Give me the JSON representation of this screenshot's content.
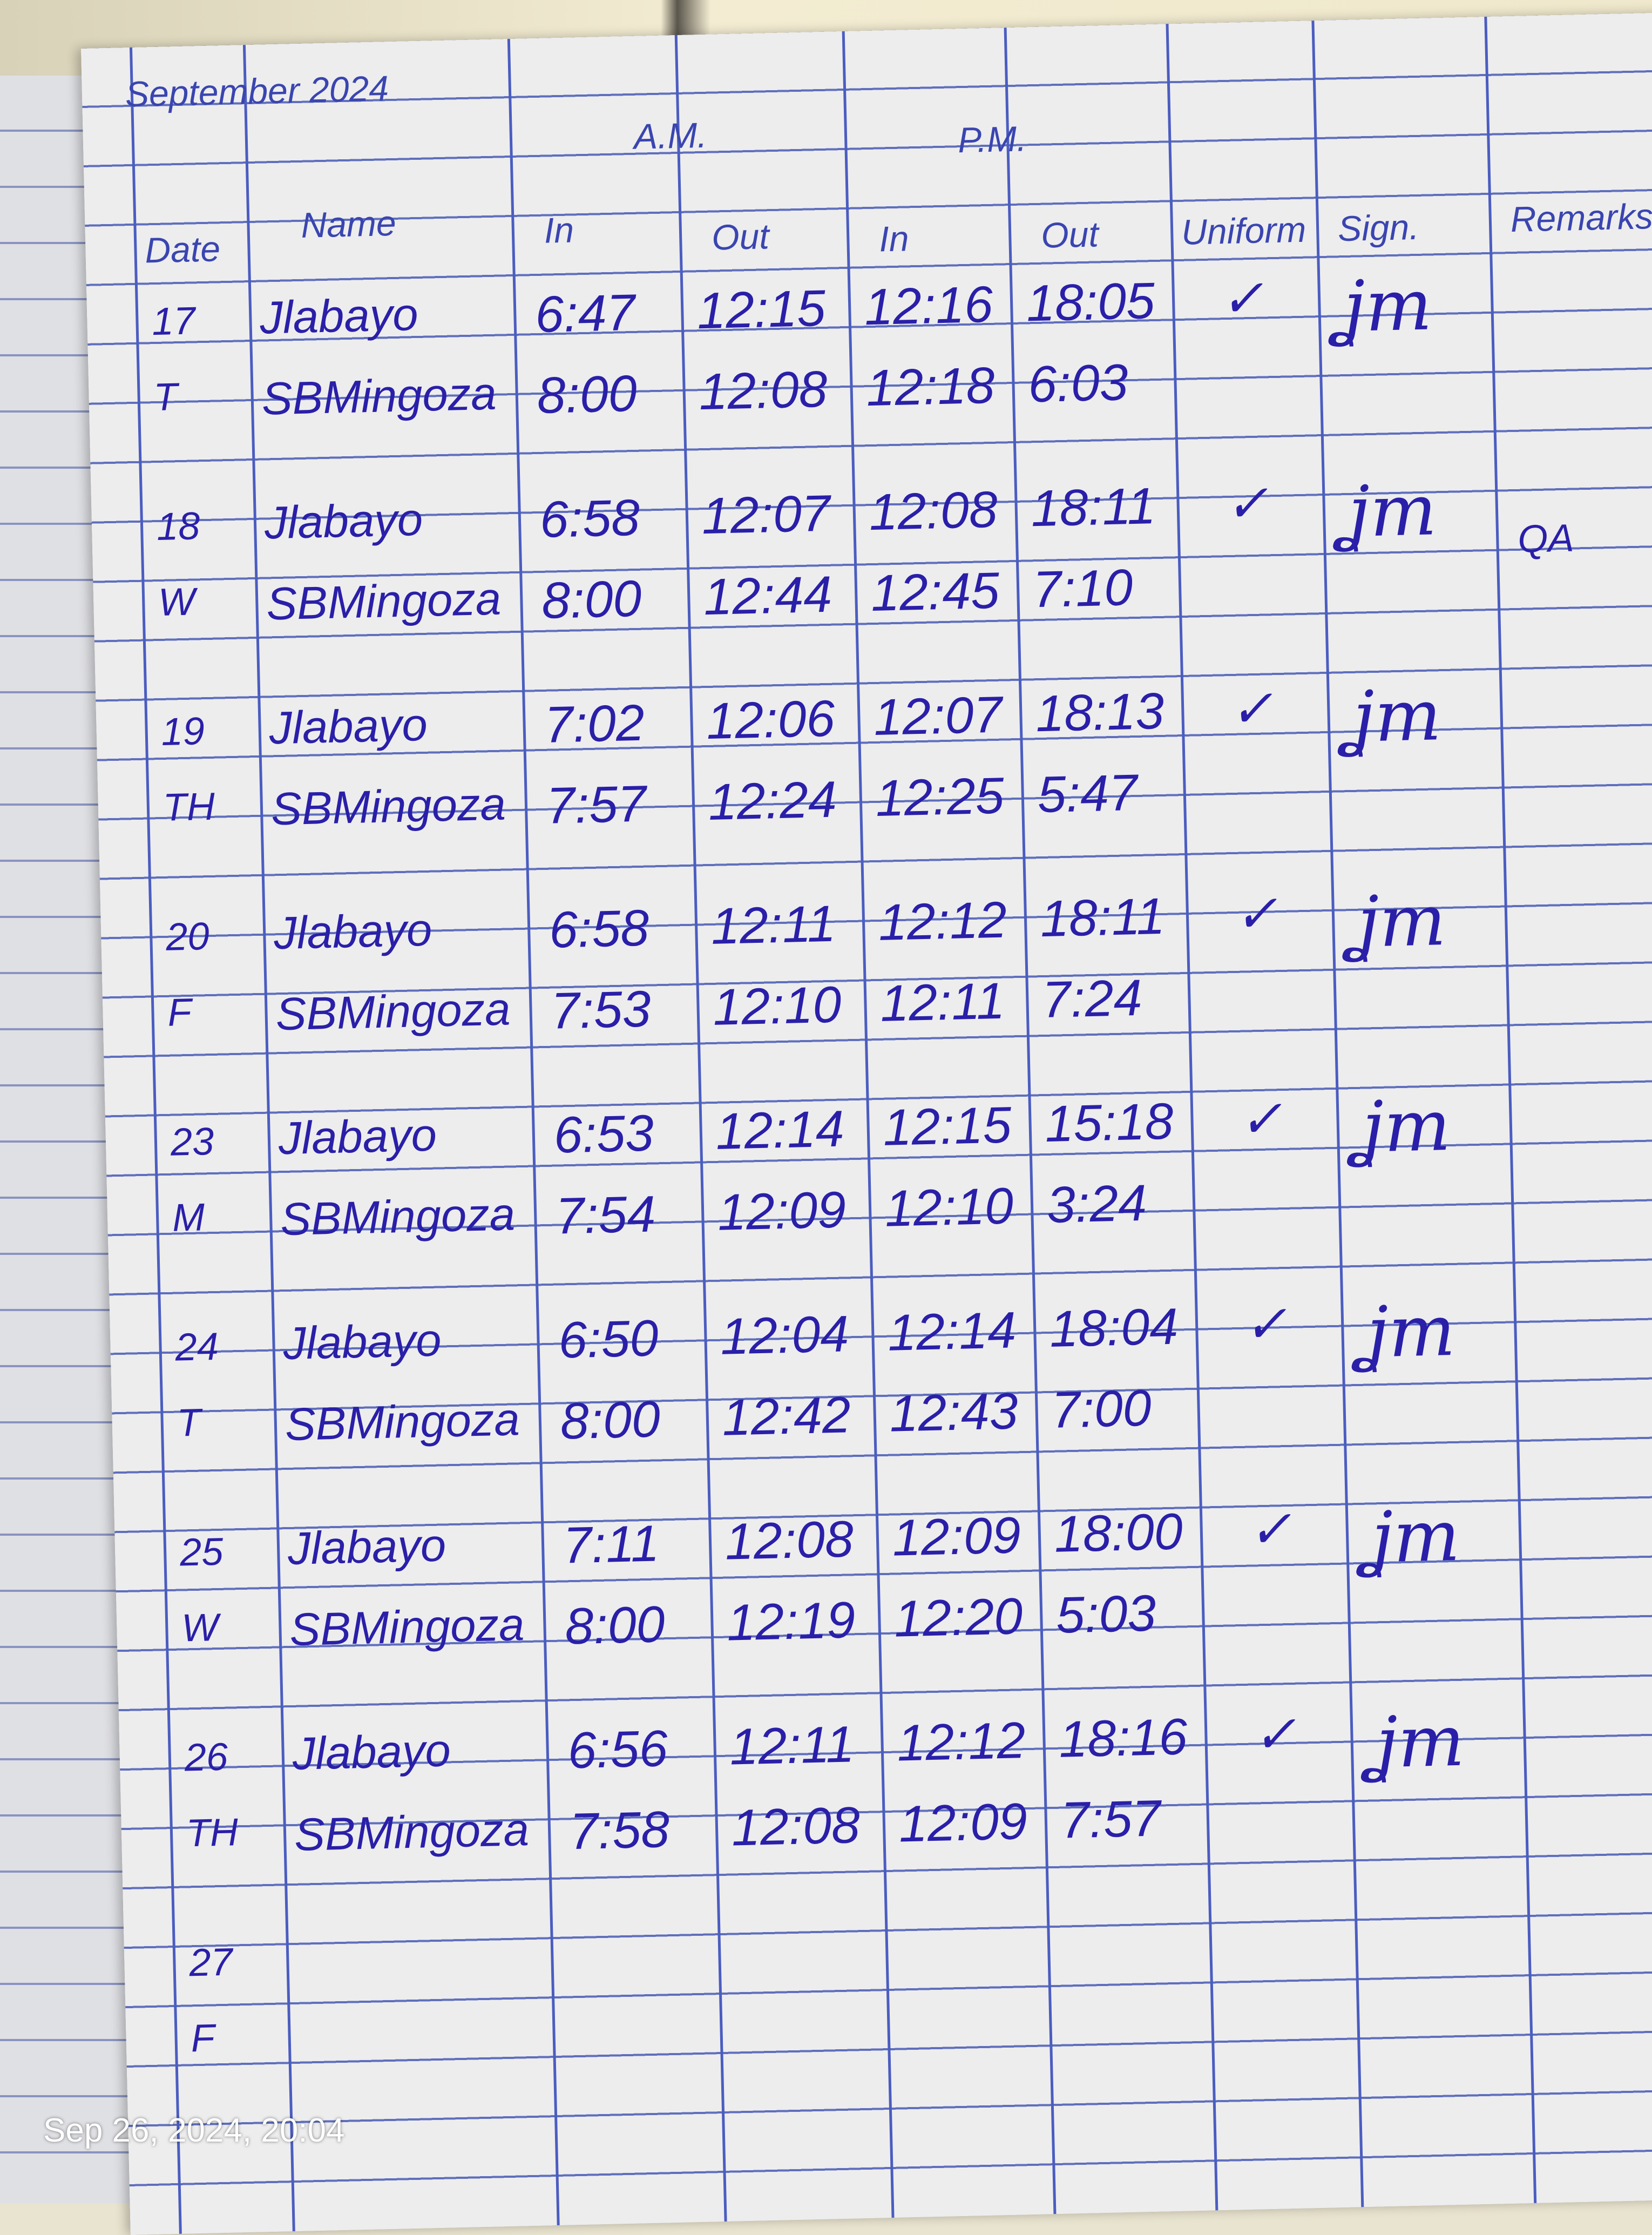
{
  "header": {
    "month": "September 2024",
    "am": "A.M.",
    "pm": "P.M.",
    "date": "Date",
    "name": "Name",
    "am_in": "In",
    "am_out": "Out",
    "pm_in": "In",
    "pm_out": "Out",
    "uniform": "Uniform",
    "sign": "Sign.",
    "remarks": "Remarks"
  },
  "ink_color": "#2a1fa8",
  "days": [
    {
      "date": "17",
      "weekday": "T",
      "uniform": "✓",
      "remarks": "",
      "entries": [
        {
          "name": "Jlabayo",
          "am_in": "6:47",
          "am_out": "12:15",
          "pm_in": "12:16",
          "pm_out": "18:05"
        },
        {
          "name": "SBMingoza",
          "am_in": "8:00",
          "am_out": "12:08",
          "pm_in": "12:18",
          "pm_out": "6:03"
        }
      ]
    },
    {
      "date": "18",
      "weekday": "W",
      "uniform": "✓",
      "remarks": "QA",
      "entries": [
        {
          "name": "Jlabayo",
          "am_in": "6:58",
          "am_out": "12:07",
          "pm_in": "12:08",
          "pm_out": "18:11"
        },
        {
          "name": "SBMingoza",
          "am_in": "8:00",
          "am_out": "12:44",
          "pm_in": "12:45",
          "pm_out": "7:10"
        }
      ]
    },
    {
      "date": "19",
      "weekday": "TH",
      "uniform": "✓",
      "remarks": "",
      "entries": [
        {
          "name": "Jlabayo",
          "am_in": "7:02",
          "am_out": "12:06",
          "pm_in": "12:07",
          "pm_out": "18:13"
        },
        {
          "name": "SBMingoza",
          "am_in": "7:57",
          "am_out": "12:24",
          "pm_in": "12:25",
          "pm_out": "5:47"
        }
      ]
    },
    {
      "date": "20",
      "weekday": "F",
      "uniform": "✓",
      "remarks": "",
      "entries": [
        {
          "name": "Jlabayo",
          "am_in": "6:58",
          "am_out": "12:11",
          "pm_in": "12:12",
          "pm_out": "18:11"
        },
        {
          "name": "SBMingoza",
          "am_in": "7:53",
          "am_out": "12:10",
          "pm_in": "12:11",
          "pm_out": "7:24"
        }
      ]
    },
    {
      "date": "23",
      "weekday": "M",
      "uniform": "✓",
      "remarks": "",
      "entries": [
        {
          "name": "Jlabayo",
          "am_in": "6:53",
          "am_out": "12:14",
          "pm_in": "12:15",
          "pm_out": "15:18"
        },
        {
          "name": "SBMingoza",
          "am_in": "7:54",
          "am_out": "12:09",
          "pm_in": "12:10",
          "pm_out": "3:24"
        }
      ]
    },
    {
      "date": "24",
      "weekday": "T",
      "uniform": "✓",
      "remarks": "",
      "entries": [
        {
          "name": "Jlabayo",
          "am_in": "6:50",
          "am_out": "12:04",
          "pm_in": "12:14",
          "pm_out": "18:04"
        },
        {
          "name": "SBMingoza",
          "am_in": "8:00",
          "am_out": "12:42",
          "pm_in": "12:43",
          "pm_out": "7:00"
        }
      ]
    },
    {
      "date": "25",
      "weekday": "W",
      "uniform": "✓",
      "remarks": "",
      "entries": [
        {
          "name": "Jlabayo",
          "am_in": "7:11",
          "am_out": "12:08",
          "pm_in": "12:09",
          "pm_out": "18:00"
        },
        {
          "name": "SBMingoza",
          "am_in": "8:00",
          "am_out": "12:19",
          "pm_in": "12:20",
          "pm_out": "5:03"
        }
      ]
    },
    {
      "date": "26",
      "weekday": "TH",
      "uniform": "✓",
      "remarks": "",
      "entries": [
        {
          "name": "Jlabayo",
          "am_in": "6:56",
          "am_out": "12:11",
          "pm_in": "12:12",
          "pm_out": "18:16"
        },
        {
          "name": "SBMingoza",
          "am_in": "7:58",
          "am_out": "12:08",
          "pm_in": "12:09",
          "pm_out": "7:57"
        }
      ]
    },
    {
      "date": "27",
      "weekday": "F",
      "uniform": "",
      "remarks": "",
      "entries": []
    }
  ],
  "photo_timestamp": "Sep 26, 2024, 20:04"
}
